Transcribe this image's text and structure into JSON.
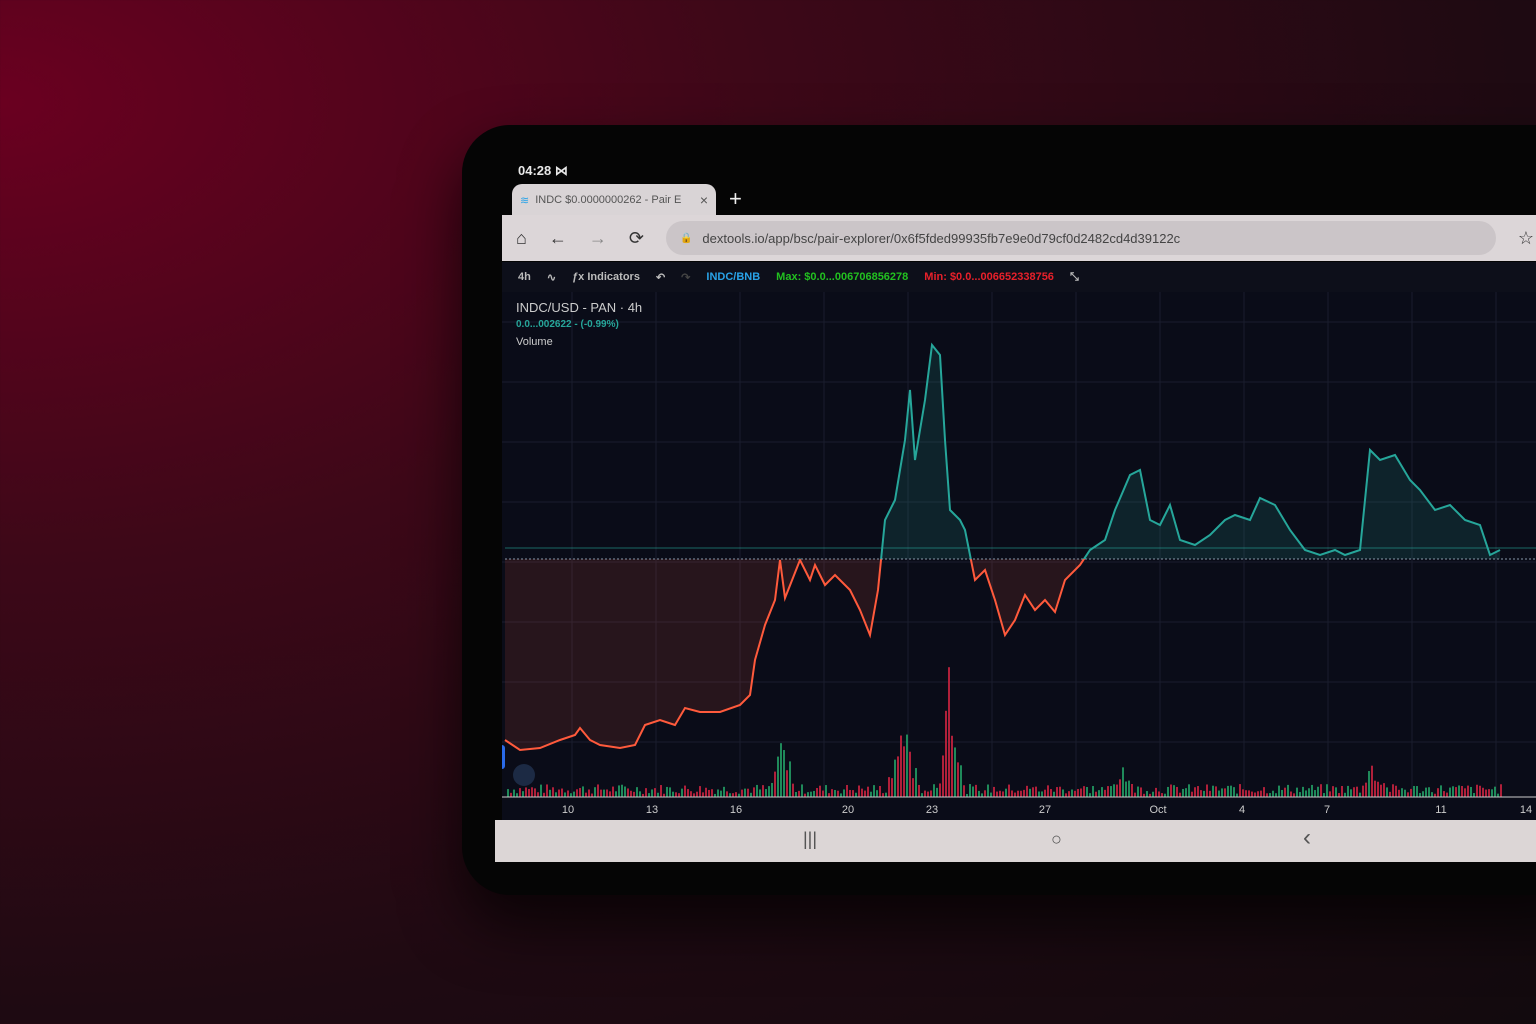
{
  "status": {
    "time": "04:28 ⋈"
  },
  "tab": {
    "title": "INDC $0.0000000262 - Pair E",
    "close": "×",
    "new_tab": "+"
  },
  "browser": {
    "home": "⌂",
    "back": "←",
    "forward": "→",
    "reload": "⟳",
    "lock": "🔒",
    "url": "dextools.io/app/bsc/pair-explorer/0x6f5fded99935fb7e9e0d79cf0d2482cd4d39122c",
    "bookmark": "☆"
  },
  "toolbar": {
    "interval": "4h",
    "chart_type": "∿",
    "fx": "ƒx",
    "indicators": "Indicators",
    "undo": "↶",
    "redo": "↷",
    "pair": "INDC/BNB",
    "max": "Max: $0.0...006706856278",
    "min": "Min: $0.0...006652338756",
    "collapse": "⤡"
  },
  "colors": {
    "pair": "#29a3e8",
    "max": "#22c020",
    "min": "#e8202a",
    "up": "#26a69a",
    "down": "#ff5a3c"
  },
  "chart_data": {
    "type": "line",
    "title": "INDC/USD - PAN · 4h",
    "change": "0.0...002622 - (-0.99%)",
    "volume_label": "Volume",
    "x_ticks": [
      "10",
      "13",
      "16",
      "20",
      "23",
      "27",
      "Oct",
      "4",
      "7",
      "11",
      "14"
    ],
    "grid": true
  },
  "nav": {
    "recents": "|||",
    "home": "○",
    "back": "‹"
  }
}
